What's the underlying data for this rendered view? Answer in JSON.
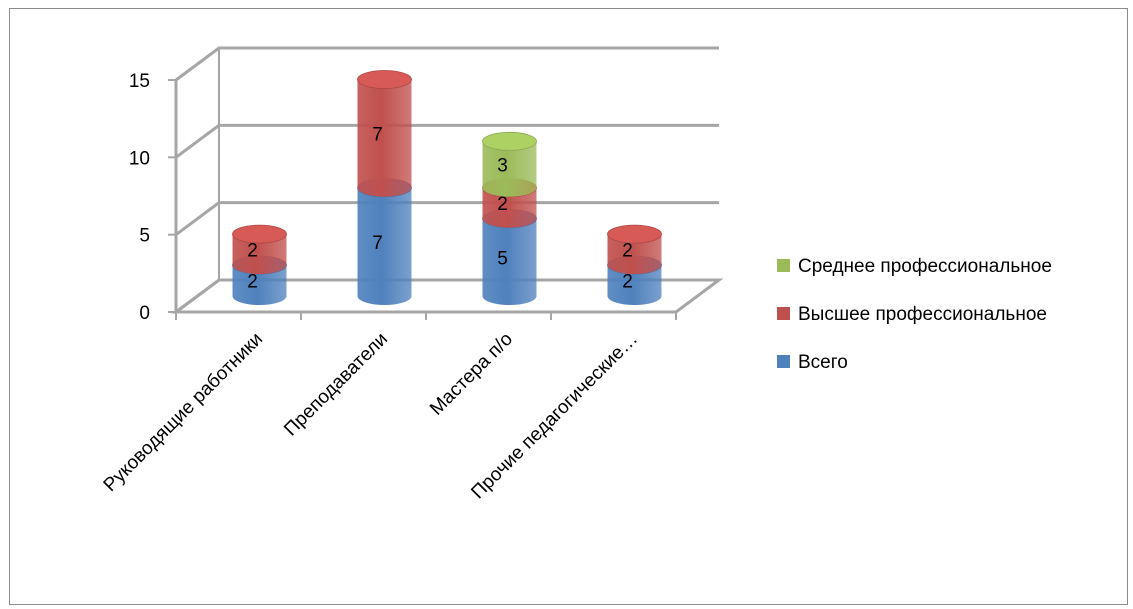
{
  "chart_data": {
    "type": "bar",
    "style": "3d-stacked-cylinder",
    "categories": [
      "Руководящие работники",
      "Преподаватели",
      "Мастера п/о",
      "Прочие педагогические…"
    ],
    "series": [
      {
        "name": "Всего",
        "values": [
          2,
          7,
          5,
          2
        ],
        "color": "#4f81bd"
      },
      {
        "name": "Высшее профессиональное",
        "values": [
          2,
          7,
          2,
          2
        ],
        "color": "#c0504d"
      },
      {
        "name": "Среднее профессиональное",
        "values": [
          0,
          0,
          3,
          0
        ],
        "color": "#9bbb59"
      }
    ],
    "yticks": [
      0,
      5,
      10,
      15
    ],
    "ylim": [
      0,
      15
    ],
    "grid": true,
    "legend_position": "right",
    "title": "",
    "xlabel": "",
    "ylabel": ""
  }
}
